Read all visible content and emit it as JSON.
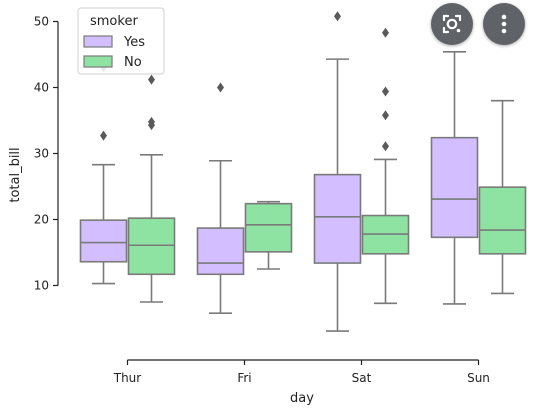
{
  "chart_data": {
    "type": "boxplot",
    "xlabel": "day",
    "ylabel": "total_bill",
    "categories": [
      "Thur",
      "Fri",
      "Sat",
      "Sun"
    ],
    "ylim": [
      0,
      51
    ],
    "yticks": [
      10,
      20,
      30,
      40,
      50
    ],
    "legend": {
      "title": "smoker",
      "placement": "top-left"
    },
    "series": [
      {
        "name": "Yes",
        "color": "#d3bfff",
        "boxes": [
          {
            "whisker_low": 10.3,
            "q1": 13.6,
            "median": 16.5,
            "q3": 19.9,
            "whisker_high": 28.3,
            "outliers": [
              32.7,
              43.1
            ]
          },
          {
            "whisker_low": 5.8,
            "q1": 11.7,
            "median": 13.4,
            "q3": 18.7,
            "whisker_high": 28.9,
            "outliers": [
              40.0
            ]
          },
          {
            "whisker_low": 3.1,
            "q1": 13.4,
            "median": 20.4,
            "q3": 26.8,
            "whisker_high": 44.3,
            "outliers": [
              50.8
            ]
          },
          {
            "whisker_low": 7.2,
            "q1": 17.3,
            "median": 23.1,
            "q3": 32.4,
            "whisker_high": 45.4,
            "outliers": [
              48.2
            ]
          }
        ]
      },
      {
        "name": "No",
        "color": "#8fe3a2",
        "boxes": [
          {
            "whisker_low": 7.5,
            "q1": 11.7,
            "median": 16.1,
            "q3": 20.2,
            "whisker_high": 29.8,
            "outliers": [
              34.3,
              34.8,
              41.2
            ]
          },
          {
            "whisker_low": 12.5,
            "q1": 15.1,
            "median": 19.2,
            "q3": 22.4,
            "whisker_high": 22.7,
            "outliers": []
          },
          {
            "whisker_low": 7.3,
            "q1": 14.8,
            "median": 17.8,
            "q3": 20.6,
            "whisker_high": 29.1,
            "outliers": [
              31.1,
              35.8,
              39.4,
              48.3
            ]
          },
          {
            "whisker_low": 8.8,
            "q1": 14.8,
            "median": 18.4,
            "q3": 24.9,
            "whisker_high": 38.0,
            "outliers": []
          }
        ]
      }
    ],
    "grid": false
  },
  "overlay": {
    "lens_icon": "lens-search-icon",
    "more_icon": "more-vertical-icon"
  }
}
